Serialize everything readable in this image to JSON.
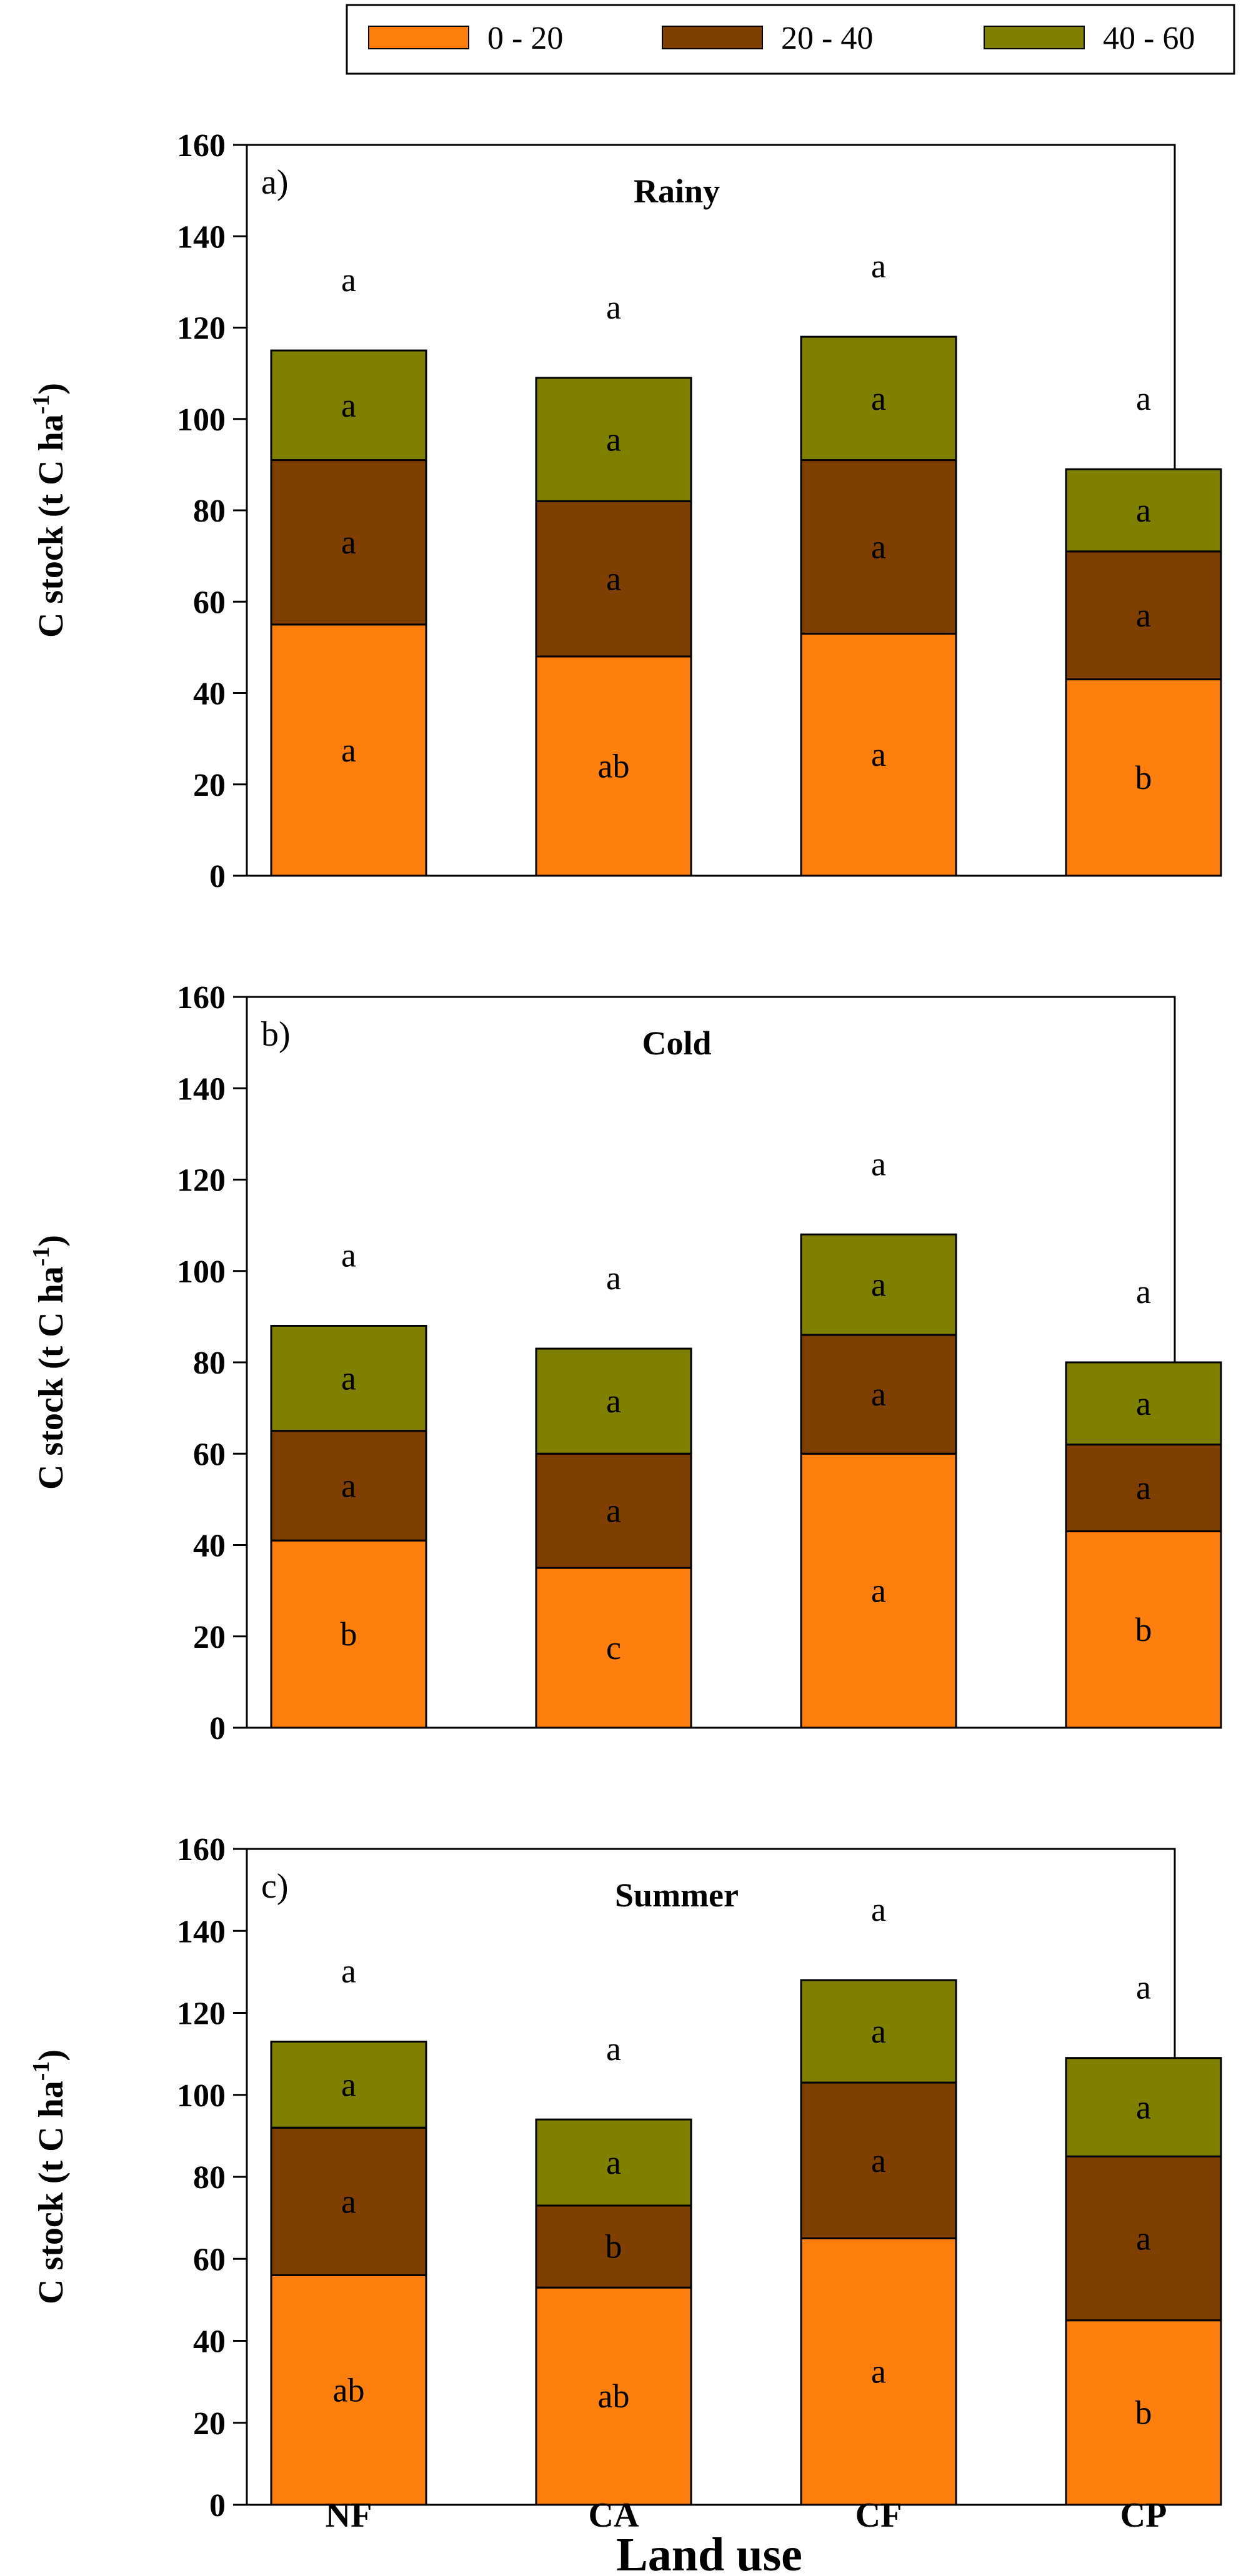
{
  "chart_data": {
    "type": "bar",
    "stacked": true,
    "categories": [
      "NF",
      "CA",
      "CF",
      "CP"
    ],
    "legend": [
      {
        "name": "0 - 20",
        "color": "#ff7f0e"
      },
      {
        "name": "20 - 40",
        "color": "#7f3f00"
      },
      {
        "name": "40 - 60",
        "color": "#7f7f00"
      }
    ],
    "xlabel": "Land use",
    "ylabel": "C stock (t C ha",
    "ylabel_sup": "-1",
    "ylabel_close": ")",
    "ylim": [
      0,
      160
    ],
    "yticks": [
      "0",
      "20",
      "40",
      "60",
      "80",
      "100",
      "120",
      "140",
      "160"
    ],
    "panels": [
      {
        "letter": "a)",
        "title": "Rainy",
        "series": [
          {
            "name": "0 - 20",
            "values": [
              55,
              48,
              53,
              43
            ],
            "letters": [
              "a",
              "ab",
              "a",
              "b"
            ]
          },
          {
            "name": "20 - 40",
            "values": [
              36,
              34,
              38,
              28
            ],
            "letters": [
              "a",
              "a",
              "a",
              "a"
            ]
          },
          {
            "name": "40 - 60",
            "values": [
              24,
              27,
              27,
              18
            ],
            "letters": [
              "a",
              "a",
              "a",
              "a"
            ]
          }
        ],
        "totals": [
          115,
          109,
          118,
          89
        ],
        "total_letters": [
          "a",
          "a",
          "a",
          "a"
        ]
      },
      {
        "letter": "b)",
        "title": "Cold",
        "series": [
          {
            "name": "0 - 20",
            "values": [
              41,
              35,
              60,
              43
            ],
            "letters": [
              "b",
              "c",
              "a",
              "b"
            ]
          },
          {
            "name": "20 - 40",
            "values": [
              24,
              25,
              26,
              19
            ],
            "letters": [
              "a",
              "a",
              "a",
              "a"
            ]
          },
          {
            "name": "40 - 60",
            "values": [
              23,
              23,
              22,
              18
            ],
            "letters": [
              "a",
              "a",
              "a",
              "a"
            ]
          }
        ],
        "totals": [
          88,
          83,
          108,
          80
        ],
        "total_letters": [
          "a",
          "a",
          "a",
          "a"
        ]
      },
      {
        "letter": "c)",
        "title": "Summer",
        "series": [
          {
            "name": "0 - 20",
            "values": [
              56,
              53,
              65,
              45
            ],
            "letters": [
              "ab",
              "ab",
              "a",
              "b"
            ]
          },
          {
            "name": "20 - 40",
            "values": [
              36,
              20,
              38,
              40
            ],
            "letters": [
              "a",
              "b",
              "a",
              "a"
            ]
          },
          {
            "name": "40 - 60",
            "values": [
              21,
              21,
              25,
              24
            ],
            "letters": [
              "a",
              "a",
              "a",
              "a"
            ]
          }
        ],
        "totals": [
          113,
          94,
          128,
          109
        ],
        "total_letters": [
          "a",
          "a",
          "a",
          "a"
        ]
      }
    ]
  }
}
